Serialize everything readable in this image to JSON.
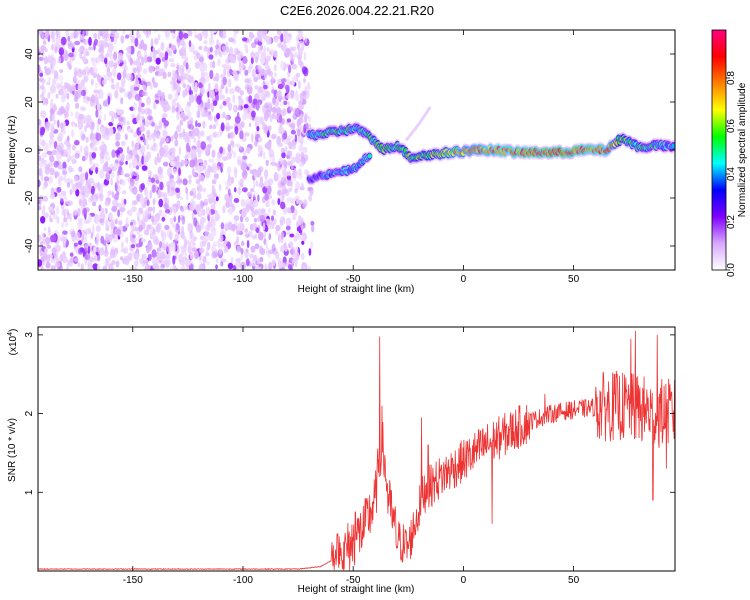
{
  "title": "C2E6.2026.004.22.21.R20",
  "chart_data": [
    {
      "type": "heatmap",
      "xlabel": "Height of straight line (km)",
      "ylabel": "Frequency (Hz)",
      "xlim": [
        -193,
        96
      ],
      "ylim": [
        -50,
        50
      ],
      "x_ticks": [
        -150,
        -100,
        -50,
        0,
        50
      ],
      "y_ticks": [
        -40,
        -20,
        0,
        20,
        40
      ],
      "colorbar": {
        "label": "Normalized spectral amplitude",
        "range": [
          0,
          1
        ],
        "ticks": [
          0.0,
          0.2,
          0.4,
          0.6,
          0.8
        ],
        "tick_labels": [
          "0.0",
          "0.2",
          "0.4",
          "0.6",
          "0.8"
        ],
        "colors": [
          "#ffffff",
          "#d8a8ff",
          "#8000ff",
          "#0000ff",
          "#00ffff",
          "#00ff00",
          "#ffff00",
          "#ff8000",
          "#ff0000",
          "#ff0080"
        ]
      },
      "noise_region_x": [
        -193,
        -70
      ],
      "ridge": [
        {
          "x": -70,
          "y": 6,
          "a": 0.45
        },
        {
          "x": -62,
          "y": 7,
          "a": 0.5
        },
        {
          "x": -55,
          "y": 8,
          "a": 0.5
        },
        {
          "x": -48,
          "y": 9,
          "a": 0.45
        },
        {
          "x": -42,
          "y": 5,
          "a": 0.5
        },
        {
          "x": -36,
          "y": 0,
          "a": 0.55
        },
        {
          "x": -30,
          "y": 2,
          "a": 0.5
        },
        {
          "x": -24,
          "y": -3,
          "a": 0.55
        },
        {
          "x": -15,
          "y": -2,
          "a": 0.6
        },
        {
          "x": -5,
          "y": -1,
          "a": 0.7
        },
        {
          "x": 5,
          "y": 0,
          "a": 0.75
        },
        {
          "x": 15,
          "y": 0,
          "a": 0.8
        },
        {
          "x": 25,
          "y": -1,
          "a": 0.85
        },
        {
          "x": 35,
          "y": -1,
          "a": 0.9
        },
        {
          "x": 45,
          "y": -1,
          "a": 0.9
        },
        {
          "x": 55,
          "y": 0,
          "a": 0.85
        },
        {
          "x": 65,
          "y": 0,
          "a": 0.8
        },
        {
          "x": 72,
          "y": 5,
          "a": 0.55
        },
        {
          "x": 80,
          "y": 1,
          "a": 0.5
        },
        {
          "x": 88,
          "y": 2,
          "a": 0.45
        },
        {
          "x": 96,
          "y": 1,
          "a": 0.4
        }
      ],
      "lower_branch": [
        {
          "x": -70,
          "y": -12,
          "a": 0.3
        },
        {
          "x": -60,
          "y": -10,
          "a": 0.4
        },
        {
          "x": -50,
          "y": -8,
          "a": 0.45
        },
        {
          "x": -42,
          "y": -2,
          "a": 0.45
        }
      ],
      "faint_spur": [
        {
          "x": -26,
          "y": 4
        },
        {
          "x": -20,
          "y": 11
        },
        {
          "x": -15,
          "y": 18
        }
      ]
    },
    {
      "type": "line",
      "xlabel": "Height of straight line (km)",
      "ylabel": "SNR (10 * v/v)",
      "y_multiplier": "(x10",
      "y_multiplier_exp": "4",
      "y_multiplier_close": ")",
      "xlim": [
        -193,
        96
      ],
      "ylim": [
        0,
        3.1
      ],
      "x_ticks": [
        -150,
        -100,
        -50,
        0,
        50
      ],
      "y_ticks": [
        1,
        2,
        3
      ],
      "series": [
        {
          "color": "#ee3333",
          "envelope": [
            {
              "x": -193,
              "y": 0.02
            },
            {
              "x": -75,
              "y": 0.02
            },
            {
              "x": -65,
              "y": 0.05
            },
            {
              "x": -55,
              "y": 0.2
            },
            {
              "x": -45,
              "y": 0.55
            },
            {
              "x": -40,
              "y": 0.9
            },
            {
              "x": -37,
              "y": 1.7
            },
            {
              "x": -34,
              "y": 0.9
            },
            {
              "x": -30,
              "y": 0.4
            },
            {
              "x": -25,
              "y": 0.3
            },
            {
              "x": -18,
              "y": 1.0
            },
            {
              "x": -10,
              "y": 1.2
            },
            {
              "x": 0,
              "y": 1.4
            },
            {
              "x": 10,
              "y": 1.6
            },
            {
              "x": 20,
              "y": 1.75
            },
            {
              "x": 30,
              "y": 1.9
            },
            {
              "x": 40,
              "y": 2.0
            },
            {
              "x": 50,
              "y": 2.05
            },
            {
              "x": 60,
              "y": 2.08
            },
            {
              "x": 70,
              "y": 2.1
            },
            {
              "x": 80,
              "y": 2.05
            },
            {
              "x": 90,
              "y": 2.0
            },
            {
              "x": 96,
              "y": 2.0
            }
          ],
          "peaks": [
            {
              "x": -38,
              "y": 2.98
            },
            {
              "x": -37,
              "y": 2.1
            },
            {
              "x": -49,
              "y": 0.75
            },
            {
              "x": -19,
              "y": 1.95
            },
            {
              "x": -16,
              "y": 1.6
            },
            {
              "x": 13,
              "y": 0.6
            },
            {
              "x": 37,
              "y": 2.25
            },
            {
              "x": 78,
              "y": 3.05
            },
            {
              "x": 88,
              "y": 3.0
            },
            {
              "x": 76,
              "y": 2.95
            },
            {
              "x": 86,
              "y": 0.9
            },
            {
              "x": 92,
              "y": 1.3
            }
          ]
        }
      ]
    }
  ]
}
